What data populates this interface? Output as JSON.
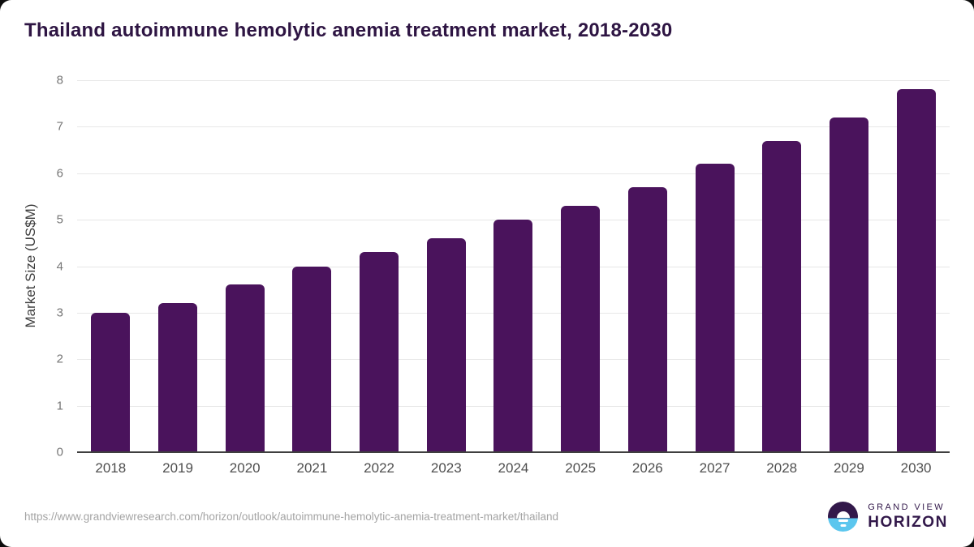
{
  "title": "Thailand autoimmune hemolytic anemia treatment market, 2018-2030",
  "chart_data": {
    "type": "bar",
    "title": "Thailand autoimmune hemolytic anemia treatment market, 2018-2030",
    "categories": [
      "2018",
      "2019",
      "2020",
      "2021",
      "2022",
      "2023",
      "2024",
      "2025",
      "2026",
      "2027",
      "2028",
      "2029",
      "2030"
    ],
    "values": [
      3.0,
      3.2,
      3.6,
      4.0,
      4.3,
      4.6,
      5.0,
      5.3,
      5.7,
      6.2,
      6.7,
      7.2,
      7.8
    ],
    "xlabel": "",
    "ylabel": "Market Size (US$M)",
    "ylim": [
      0,
      8
    ],
    "yticks": [
      0,
      1,
      2,
      3,
      4,
      5,
      6,
      7,
      8
    ],
    "grid": "horizontal",
    "legend": "none"
  },
  "footer": {
    "source_url": "https://www.grandviewresearch.com/horizon/outlook/autoimmune-hemolytic-anemia-treatment-market/thailand",
    "brand": {
      "top": "GRAND VIEW",
      "bottom": "HORIZON"
    }
  },
  "colors": {
    "bar": "#4A135C",
    "title_text": "#2E1543",
    "gridline": "#E7E7E7",
    "axis_line": "#3F3F3F",
    "y_tick_text": "#757575",
    "x_tick_text": "#4E4E4E",
    "axis_label_text": "#3E3E3E",
    "url_text": "#A4A4A4",
    "logo_dark": "#32184A",
    "logo_blue": "#5BC6EE"
  }
}
